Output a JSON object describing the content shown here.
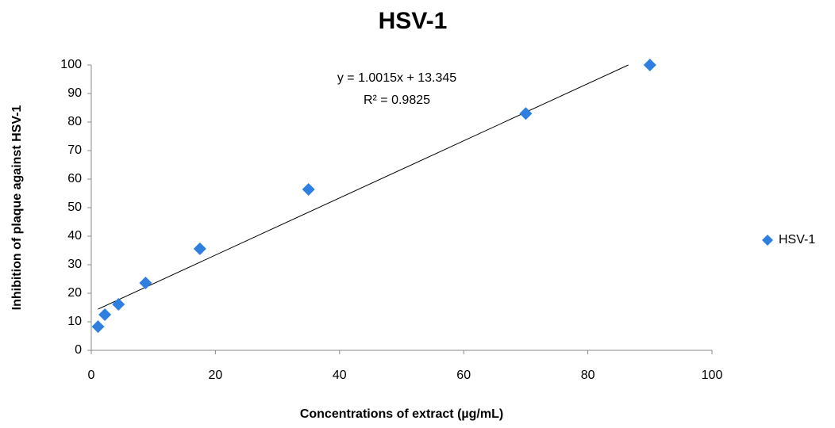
{
  "chart_data": {
    "type": "scatter",
    "title": "HSV-1",
    "x_label": "Concentrations of extract (µg/mL)",
    "y_label": "Inhibition of plaque against  HSV-1",
    "series": [
      {
        "name": "HSV-1",
        "color": "#2e7fe0",
        "x": [
          1.09,
          2.19,
          4.38,
          8.75,
          17.5,
          35,
          70,
          90
        ],
        "values": [
          8.3,
          12.5,
          16.1,
          23.6,
          35.6,
          56.4,
          83,
          100
        ]
      }
    ],
    "trendline": {
      "slope": 1.0015,
      "intercept": 13.345,
      "color": "#000000",
      "equation": "y = 1.0015x + 13.345",
      "r2": "R² = 0.9825"
    },
    "xlim": [
      0,
      100
    ],
    "xticks": [
      0,
      20,
      40,
      60,
      80,
      100
    ],
    "ylim": [
      0,
      100
    ],
    "yticks": [
      0,
      10,
      20,
      30,
      40,
      50,
      60,
      70,
      80,
      90,
      100
    ],
    "grid": false,
    "legend": "right"
  }
}
